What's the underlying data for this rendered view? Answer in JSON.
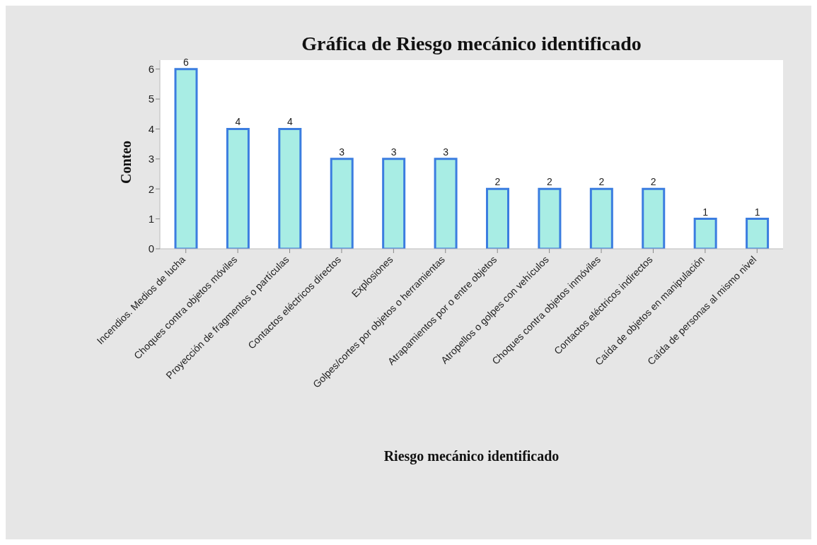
{
  "chart_data": {
    "type": "bar",
    "title": "Gráfica de Riesgo mecánico identificado",
    "xlabel": "Riesgo mecánico identificado",
    "ylabel": "Conteo",
    "categories": [
      "Incendios. Medios de lucha",
      "Choques contra objetos móviles",
      "Proyección de fragmentos o partículas",
      "Contactos eléctricos directos",
      "Explosiones",
      "Golpes/cortes por objetos o herramientas",
      "Atrapamientos por o entre objetos",
      "Atropellos o golpes con vehículos",
      "Choques contra objetos inmóviles",
      "Contactos eléctricos indirectos",
      "Caída de objetos en manipulación",
      "Caída de personas al mismo nivel"
    ],
    "values": [
      6,
      4,
      4,
      3,
      3,
      3,
      2,
      2,
      2,
      2,
      1,
      1
    ],
    "color": "#a8ede4",
    "ylim": [
      0,
      6.3
    ],
    "yticks": [
      0,
      1,
      2,
      3,
      4,
      5,
      6
    ],
    "grid": false,
    "data_labels": true
  }
}
